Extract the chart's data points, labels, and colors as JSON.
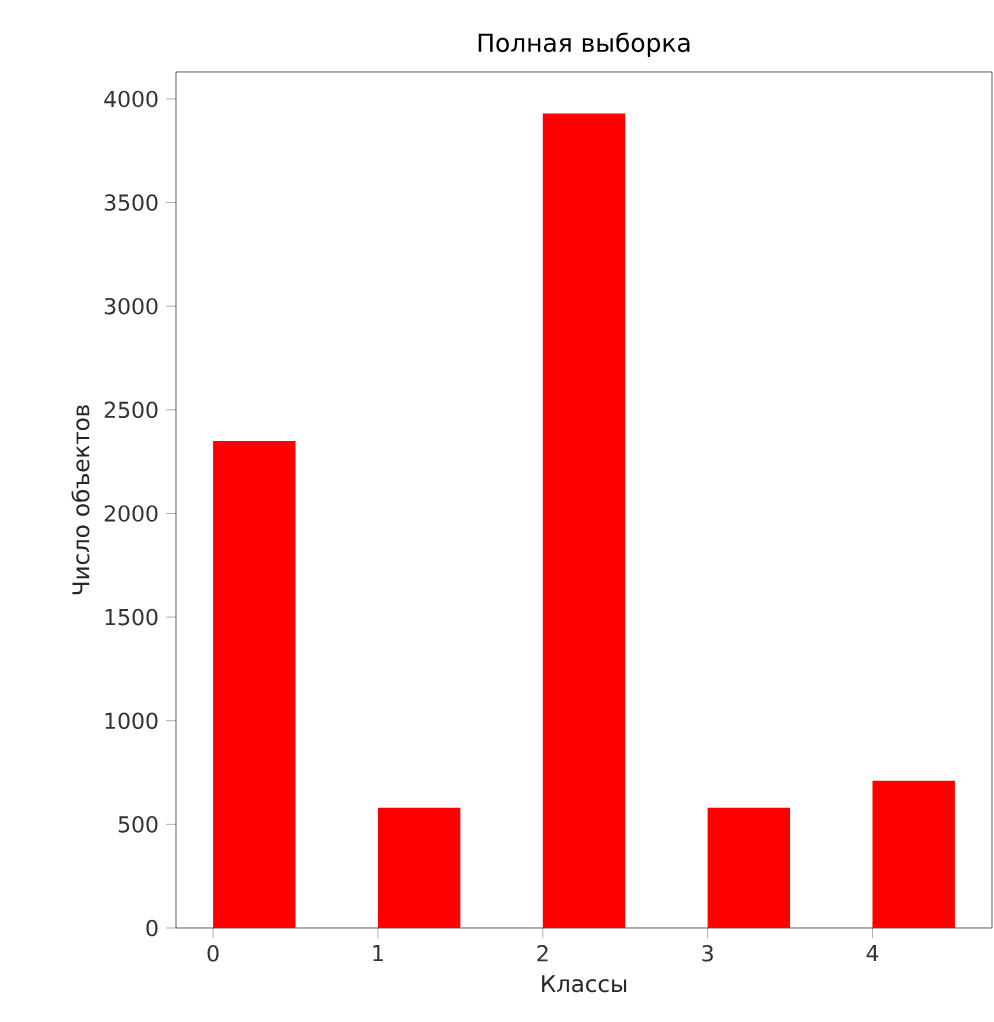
{
  "chart_data": {
    "type": "histogram",
    "title": "Полная выборка",
    "xlabel": "Классы",
    "ylabel": "Число объектов",
    "bins": [
      0,
      0.5,
      1,
      1.5,
      2,
      2.5,
      3,
      3.5,
      4,
      4.5
    ],
    "values": [
      2350,
      0,
      580,
      0,
      3930,
      0,
      580,
      0,
      710
    ],
    "color": "#ff0000",
    "xlim": [
      -0.225,
      4.725
    ],
    "xticks": [
      0,
      1,
      2,
      3,
      4
    ],
    "ylim": [
      0,
      4130
    ],
    "yticks": [
      0,
      500,
      1000,
      1500,
      2000,
      2500,
      3000,
      3500,
      4000
    ],
    "grid": false
  }
}
